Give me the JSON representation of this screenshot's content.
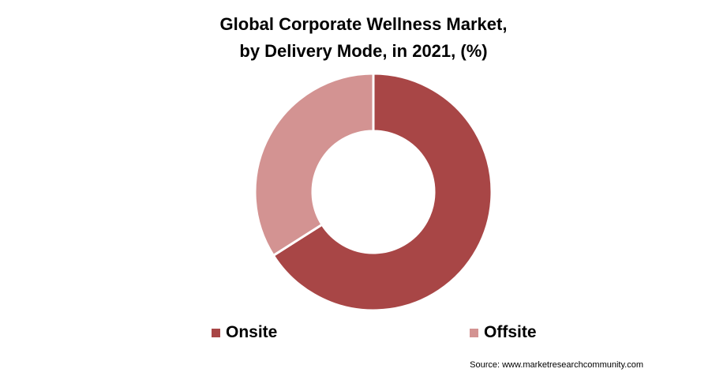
{
  "chart_data": {
    "type": "pie",
    "title": "Global Corporate Wellness Market, by Delivery Mode, in 2021, (%)",
    "title_lines": [
      "Global Corporate Wellness Market,",
      "by Delivery Mode, in 2021, (%)"
    ],
    "categories": [
      "Onsite",
      "Offsite"
    ],
    "values": [
      66,
      34
    ],
    "colors": [
      "#A84646",
      "#D39392"
    ],
    "style": "donut",
    "legend_position": "bottom"
  },
  "source": "Source: www.marketresearchcommunity.com"
}
